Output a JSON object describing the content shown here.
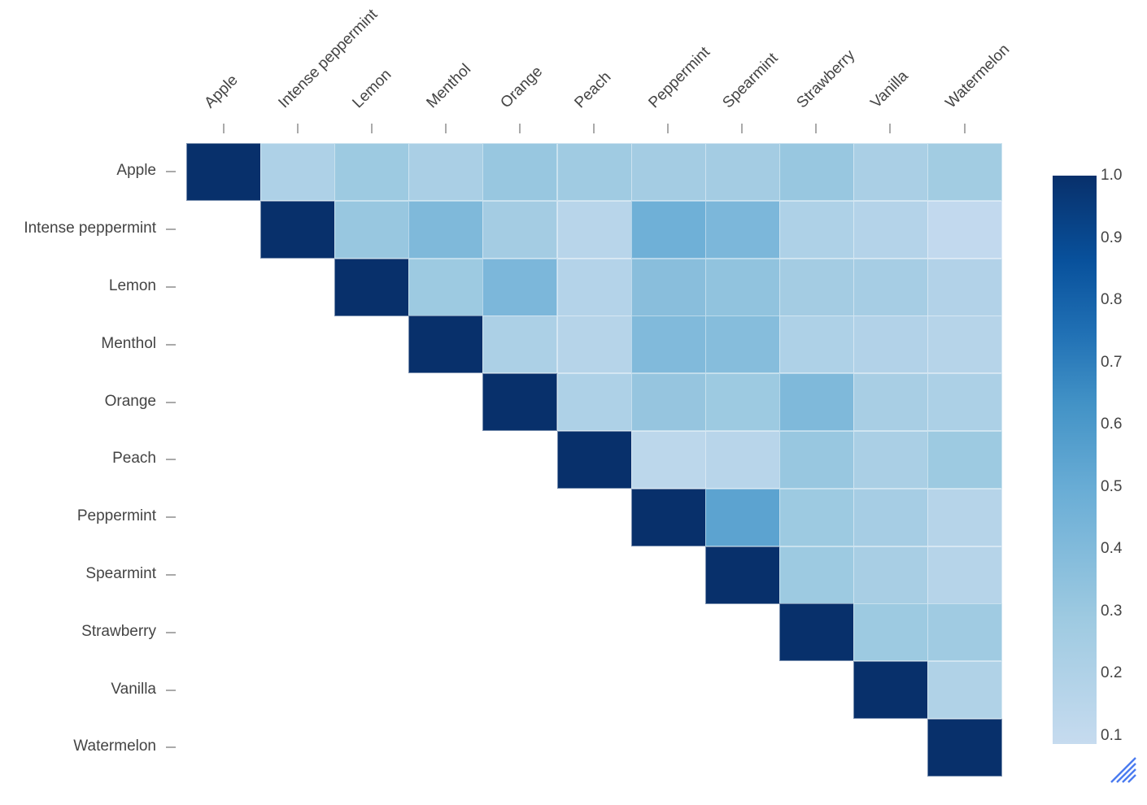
{
  "chart_data": {
    "type": "heatmap",
    "title": "",
    "xlabel": "",
    "ylabel": "",
    "categories": [
      "Apple",
      "Intense peppermint",
      "Lemon",
      "Menthol",
      "Orange",
      "Peach",
      "Peppermint",
      "Spearmint",
      "Strawberry",
      "Vanilla",
      "Watermelon"
    ],
    "x_labels": [
      "Apple",
      "Intense peppermint",
      "Lemon",
      "Menthol",
      "Orange",
      "Peach",
      "Peppermint",
      "Spearmint",
      "Strawberry",
      "Vanilla",
      "Watermelon"
    ],
    "y_labels": [
      "Apple",
      "Intense peppermint",
      "Lemon",
      "Menthol",
      "Orange",
      "Peach",
      "Peppermint",
      "Spearmint",
      "Strawberry",
      "Vanilla",
      "Watermelon"
    ],
    "matrix_shape": "upper-triangular",
    "values": [
      [
        1.0,
        0.22,
        0.3,
        0.24,
        0.32,
        0.29,
        0.27,
        0.27,
        0.32,
        0.24,
        0.28
      ],
      [
        null,
        1.0,
        0.32,
        0.42,
        0.27,
        0.17,
        0.48,
        0.43,
        0.22,
        0.19,
        0.12
      ],
      [
        null,
        null,
        1.0,
        0.3,
        0.43,
        0.19,
        0.38,
        0.35,
        0.27,
        0.26,
        0.2
      ],
      [
        null,
        null,
        null,
        1.0,
        0.23,
        0.18,
        0.41,
        0.39,
        0.22,
        0.2,
        0.18
      ],
      [
        null,
        null,
        null,
        null,
        1.0,
        0.22,
        0.33,
        0.3,
        0.42,
        0.25,
        0.23
      ],
      [
        null,
        null,
        null,
        null,
        null,
        1.0,
        0.15,
        0.17,
        0.32,
        0.24,
        0.3
      ],
      [
        null,
        null,
        null,
        null,
        null,
        null,
        1.0,
        0.55,
        0.3,
        0.26,
        0.18
      ],
      [
        null,
        null,
        null,
        null,
        null,
        null,
        null,
        1.0,
        0.3,
        0.25,
        0.18
      ],
      [
        null,
        null,
        null,
        null,
        null,
        null,
        null,
        null,
        1.0,
        0.3,
        0.29
      ],
      [
        null,
        null,
        null,
        null,
        null,
        null,
        null,
        null,
        null,
        1.0,
        0.21
      ],
      [
        null,
        null,
        null,
        null,
        null,
        null,
        null,
        null,
        null,
        null,
        1.0
      ]
    ],
    "colorscale": "Blues",
    "zlim": [
      0.1,
      1.0
    ],
    "colorbar_ticks": [
      "1.0",
      "0.9",
      "0.8",
      "0.7",
      "0.6",
      "0.5",
      "0.4",
      "0.3",
      "0.2",
      "0.1"
    ],
    "x_axis_position": "top",
    "x_label_rotation": -45,
    "grid": false,
    "legend_position": "right (colorbar)"
  },
  "colors": {
    "min": "#c6dbef",
    "max": "#08306b",
    "text": "#444444",
    "tick": "#aaaaaa",
    "resize_handle": "#4a7bf0"
  },
  "ui": {
    "resize_handle_icon": "resize-handle-icon"
  }
}
